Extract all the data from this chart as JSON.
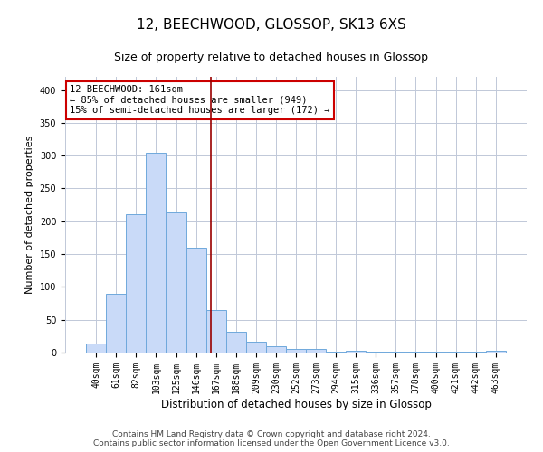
{
  "title": "12, BEECHWOOD, GLOSSOP, SK13 6XS",
  "subtitle": "Size of property relative to detached houses in Glossop",
  "xlabel": "Distribution of detached houses by size in Glossop",
  "ylabel": "Number of detached properties",
  "footer_line1": "Contains HM Land Registry data © Crown copyright and database right 2024.",
  "footer_line2": "Contains public sector information licensed under the Open Government Licence v3.0.",
  "annotation_line1": "12 BEECHWOOD: 161sqm",
  "annotation_line2": "← 85% of detached houses are smaller (949)",
  "annotation_line3": "15% of semi-detached houses are larger (172) →",
  "bar_color": "#c9daf8",
  "bar_edge_color": "#6fa8dc",
  "ref_line_color": "#990000",
  "annotation_box_edge_color": "#cc0000",
  "background_color": "#ffffff",
  "grid_color": "#c0c8d8",
  "categories": [
    "40sqm",
    "61sqm",
    "82sqm",
    "103sqm",
    "125sqm",
    "146sqm",
    "167sqm",
    "188sqm",
    "209sqm",
    "230sqm",
    "252sqm",
    "273sqm",
    "294sqm",
    "315sqm",
    "336sqm",
    "357sqm",
    "378sqm",
    "400sqm",
    "421sqm",
    "442sqm",
    "463sqm"
  ],
  "values": [
    14,
    89,
    211,
    304,
    213,
    160,
    65,
    31,
    16,
    9,
    6,
    5,
    1,
    3,
    1,
    2,
    1,
    2,
    1,
    1,
    3
  ],
  "ylim": [
    0,
    420
  ],
  "yticks": [
    0,
    50,
    100,
    150,
    200,
    250,
    300,
    350,
    400
  ],
  "ref_line_x": 5.75,
  "title_fontsize": 11,
  "subtitle_fontsize": 9,
  "xlabel_fontsize": 8.5,
  "ylabel_fontsize": 8,
  "tick_fontsize": 7,
  "annotation_fontsize": 7.5,
  "footer_fontsize": 6.5
}
